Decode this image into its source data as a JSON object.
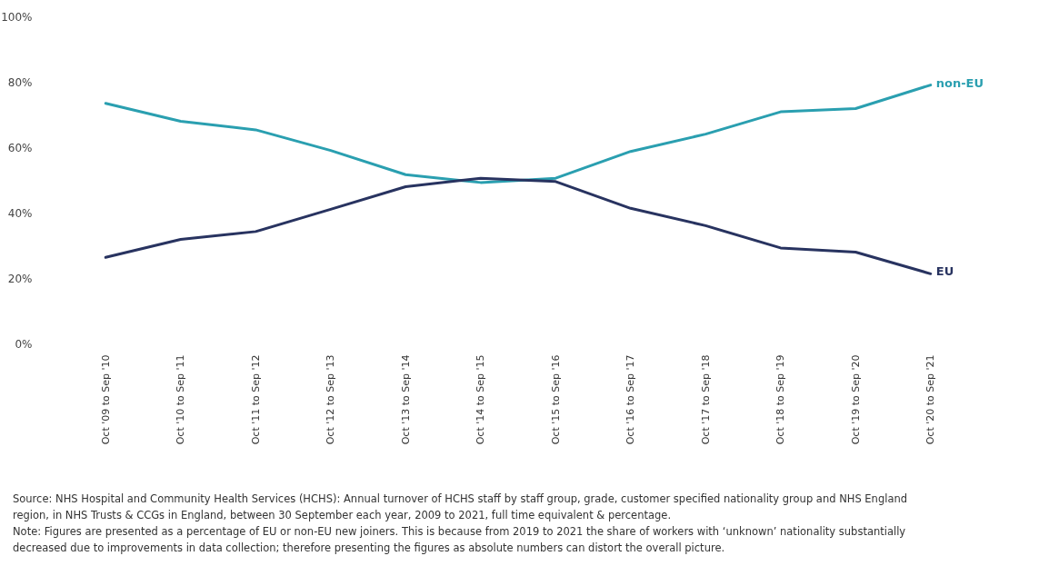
{
  "chart_data": {
    "type": "line",
    "categories": [
      "Oct '09 to Sep '10",
      "Oct '10 to Sep '11",
      "Oct '11 to Sep '12",
      "Oct '12 to Sep '13",
      "Oct '13 to Sep '14",
      "Oct '14 to Sep '15",
      "Oct '15 to Sep '16",
      "Oct '16 to Sep '17",
      "Oct '17 to Sep '18",
      "Oct '18 to Sep '19",
      "Oct '19 to Sep '20",
      "Oct '20 to Sep '21"
    ],
    "series": [
      {
        "name": "non-EU",
        "color": "#2a9fb0",
        "values": [
          73.4,
          67.9,
          65.3,
          59,
          51.6,
          49.2,
          50.5,
          58.7,
          64,
          70.8,
          71.8,
          79
        ]
      },
      {
        "name": "EU",
        "color": "#283360",
        "values": [
          26.3,
          31.8,
          34.2,
          41,
          47.9,
          50.5,
          49.5,
          41.3,
          36,
          29.2,
          27.9,
          21.3
        ]
      }
    ],
    "ylim": [
      0,
      100
    ],
    "yticks": [
      {
        "value": 0,
        "label": "0%"
      },
      {
        "value": 20,
        "label": "20%"
      },
      {
        "value": 40,
        "label": "40%"
      },
      {
        "value": 60,
        "label": "60%"
      },
      {
        "value": 80,
        "label": "80%"
      },
      {
        "value": 100,
        "label": "100%"
      }
    ],
    "grid": false,
    "legend": false,
    "annotations": [
      "Source: NHS Hospital and Community Health Services (HCHS): Annual turnover of HCHS staff by staff group, grade, customer specified nationality group and NHS England region, in NHS Trusts & CCGs in England, between 30 September each year, 2009 to 2021, full time equivalent & percentage.",
      "Note: Figures are presented as a percentage of EU or non-EU new joiners. This is because from 2019 to 2021 the share of workers with ‘unknown’ nationality substantially decreased due to improvements in data collection; therefore presenting the figures as absolute numbers can distort the overall picture."
    ]
  }
}
